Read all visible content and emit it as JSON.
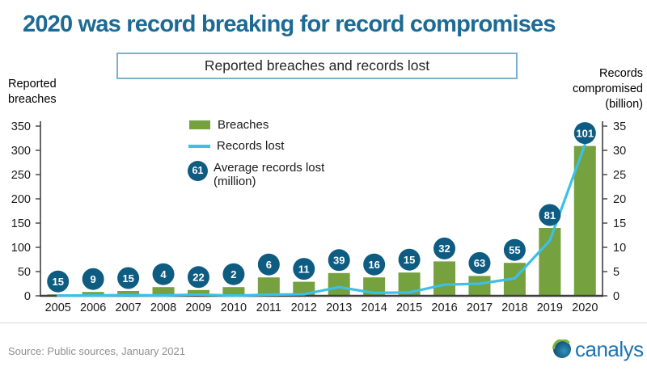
{
  "title": "2020 was record breaking for record compromises",
  "subtitle": "Reported breaches and records lost",
  "left_axis_title": "Reported breaches",
  "right_axis_title": "Records compromised (billion)",
  "legend": {
    "avg_badge": "61"
  },
  "footer": {
    "source": "Source: Public sources, January 2021",
    "brand": "canalys"
  },
  "colors": {
    "title": "#1d6a94",
    "bar": "#75a13f",
    "line": "#3bc0e8",
    "circle": "#0f5c82",
    "circle_text": "#ffffff",
    "axis": "#3f3f3f",
    "tick_text": "#1a1a1a"
  },
  "chart_data": {
    "type": "bar",
    "title": "Reported breaches and records lost",
    "categories": [
      "2005",
      "2006",
      "2007",
      "2008",
      "2009",
      "2010",
      "2011",
      "2012",
      "2013",
      "2014",
      "2015",
      "2016",
      "2017",
      "2018",
      "2019",
      "2020"
    ],
    "series": [
      {
        "name": "Breaches",
        "type": "bar",
        "axis": "left",
        "values": [
          3,
          8,
          10,
          18,
          12,
          18,
          38,
          29,
          47,
          38,
          48,
          71,
          41,
          68,
          140,
          309
        ]
      },
      {
        "name": "Records lost",
        "type": "line",
        "axis": "right",
        "values": [
          0.05,
          0.08,
          0.15,
          0.08,
          0.26,
          0.05,
          0.23,
          0.32,
          1.8,
          0.6,
          0.7,
          2.3,
          2.5,
          3.6,
          11.4,
          31.2
        ]
      },
      {
        "name": "Average records lost (million)",
        "type": "data-labels",
        "values": [
          15,
          9,
          15,
          4,
          22,
          2,
          6,
          11,
          39,
          16,
          15,
          32,
          63,
          55,
          81,
          101
        ]
      }
    ],
    "left_axis": {
      "title": "Reported breaches",
      "min": 0,
      "max": 350,
      "step": 50
    },
    "right_axis": {
      "title": "Records compromised (billion)",
      "min": 0,
      "max": 35,
      "step": 5
    },
    "grid": false,
    "legend_position": "top-left-inside"
  }
}
